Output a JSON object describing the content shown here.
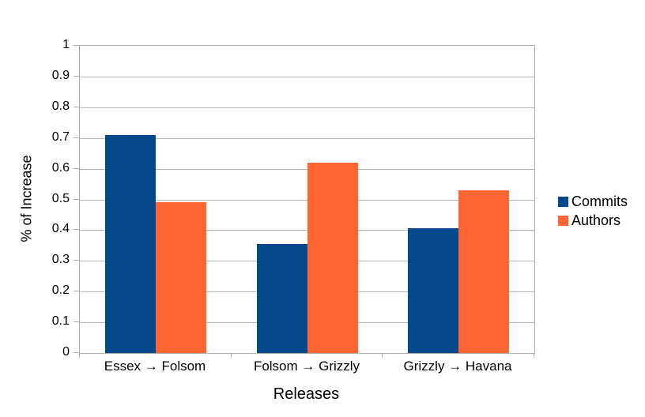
{
  "chart_data": {
    "type": "bar",
    "title": "",
    "categories": [
      "Essex → Folsom",
      "Folsom → Grizzly",
      "Grizzly → Havana"
    ],
    "series": [
      {
        "name": "Commits",
        "color": "#04488c",
        "values": [
          0.71,
          0.355,
          0.405
        ]
      },
      {
        "name": "Authors",
        "color": "#ff6633",
        "values": [
          0.49,
          0.62,
          0.53
        ]
      }
    ],
    "xlabel": "Releases",
    "ylabel": "% of Increase",
    "ylim": [
      0,
      1
    ],
    "ytick_step": 0.1,
    "yticks": [
      "1",
      "0.9",
      "0.8",
      "0.7",
      "0.6",
      "0.5",
      "0.4",
      "0.3",
      "0.2",
      "0.1",
      "0"
    ],
    "grid": "horizontal",
    "legend_position": "right",
    "colors": {
      "grid": "#b6b6b6",
      "axis": "#adadad",
      "text": "#000000",
      "background": "#ffffff"
    }
  }
}
